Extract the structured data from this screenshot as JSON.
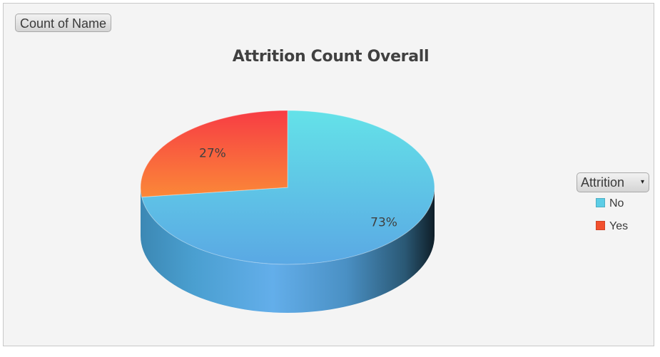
{
  "field_button": {
    "label": "Count of Name"
  },
  "legend_field_button": {
    "label": "Attrition",
    "arrow": "▾"
  },
  "chart_data": {
    "type": "pie",
    "title": "Attrition Count Overall",
    "categories": [
      "No",
      "Yes"
    ],
    "values": [
      73,
      27
    ],
    "data_labels": [
      "73%",
      "27%"
    ],
    "colors": [
      "#5ccde6",
      "#f2502e"
    ],
    "legend_position": "right",
    "style": "3d"
  }
}
